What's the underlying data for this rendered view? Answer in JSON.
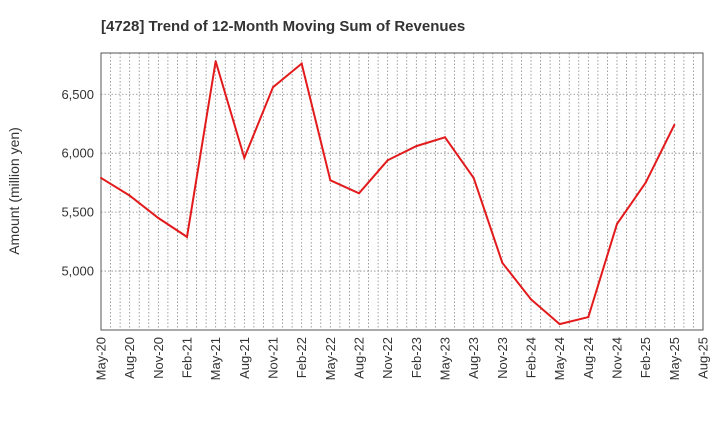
{
  "chart_data": {
    "type": "line",
    "title": "[4728]  Trend of 12-Month Moving Sum of Revenues",
    "ylabel": "Amount (million yen)",
    "xlabel": "",
    "ylim": [
      4500,
      6850
    ],
    "y_ticks": [
      5000,
      5500,
      6000,
      6500
    ],
    "y_tick_labels": [
      "5,000",
      "5,500",
      "6,000",
      "6,500"
    ],
    "x_tick_labels": [
      "May-20",
      "Aug-20",
      "Nov-20",
      "Feb-21",
      "May-21",
      "Aug-21",
      "Nov-21",
      "Feb-22",
      "May-22",
      "Aug-22",
      "Nov-22",
      "Feb-23",
      "May-23",
      "Aug-23",
      "Nov-23",
      "Feb-24",
      "May-24",
      "Aug-24",
      "Nov-24",
      "Feb-25",
      "May-25",
      "Aug-25"
    ],
    "grid": true,
    "series": [
      {
        "color": "#e31a1c",
        "x": [
          "May-20",
          "Aug-20",
          "Nov-20",
          "Feb-21",
          "May-21",
          "Aug-21",
          "Nov-21",
          "Feb-22",
          "May-22",
          "Aug-22",
          "Nov-22",
          "Feb-23",
          "May-23",
          "Aug-23",
          "Nov-23",
          "Feb-24",
          "May-24",
          "Aug-24",
          "Nov-24",
          "Feb-25",
          "May-25"
        ],
        "values": [
          5790,
          5640,
          5450,
          5290,
          6780,
          5960,
          6560,
          6760,
          5770,
          5660,
          5940,
          6060,
          6135,
          5790,
          5070,
          4760,
          4550,
          4610,
          5400,
          5750,
          6240
        ]
      }
    ]
  }
}
